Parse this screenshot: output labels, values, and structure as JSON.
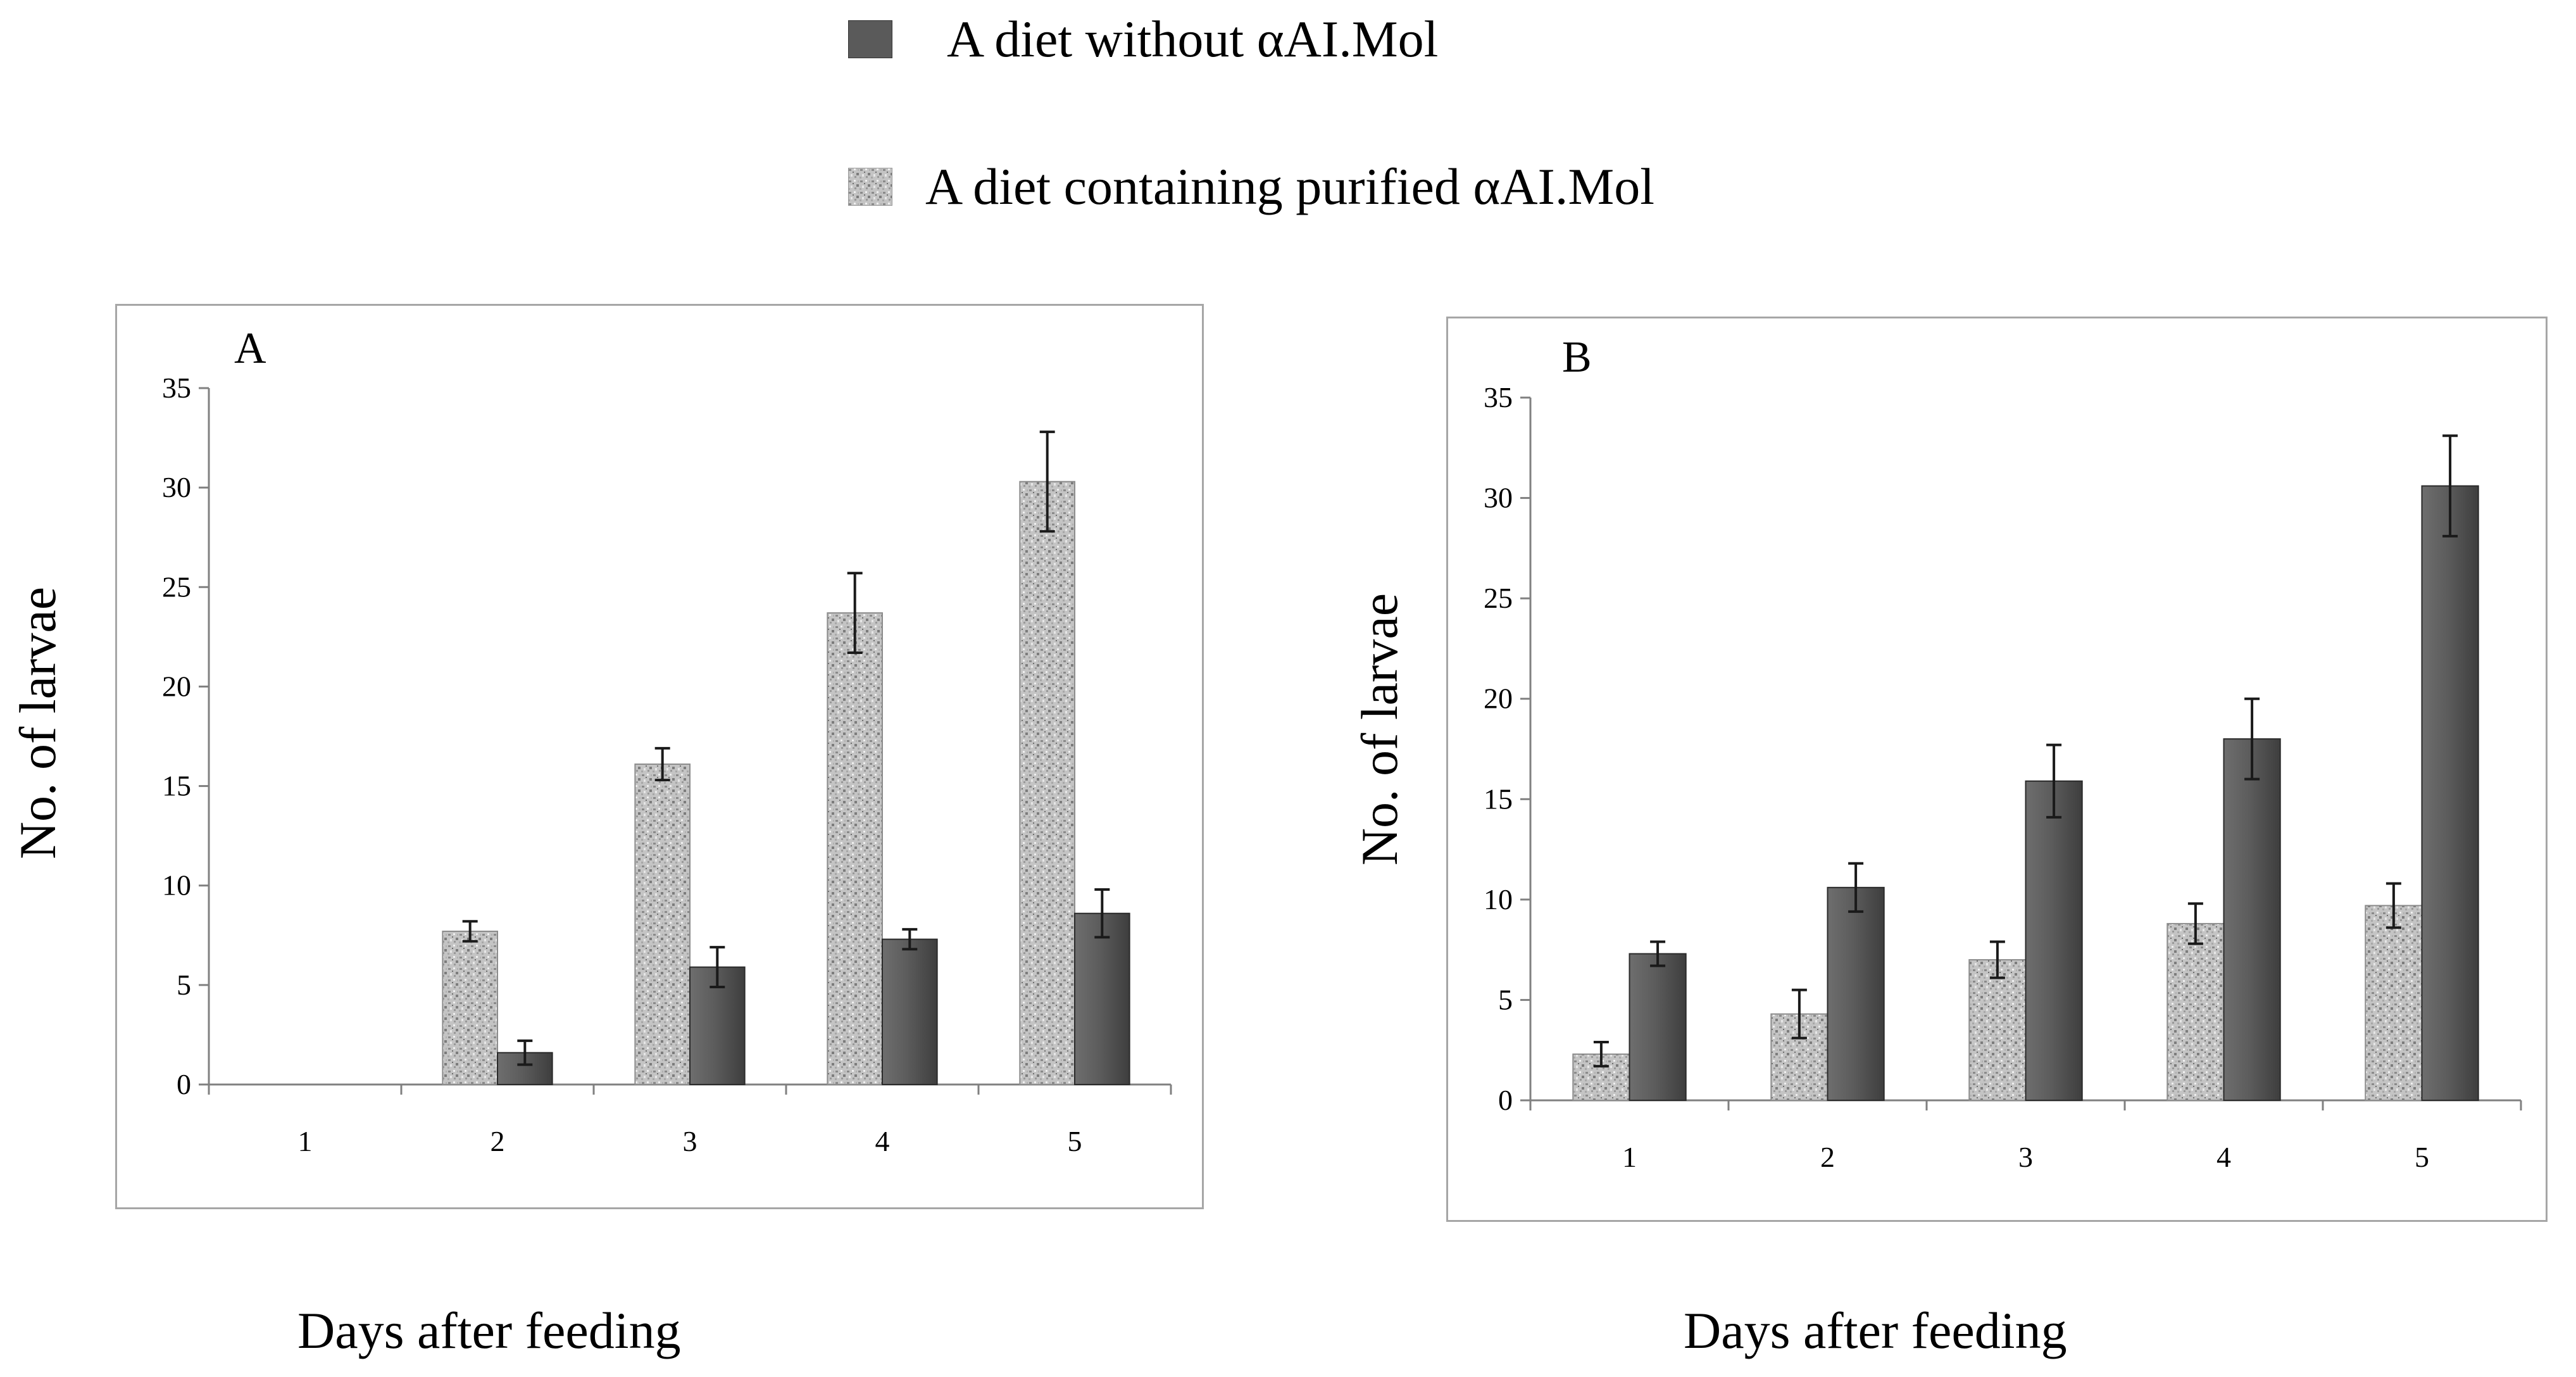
{
  "legend": {
    "items": [
      {
        "label": "A diet without αAI.Mol",
        "color": "#5a5a5a",
        "pattern": "solid-dark"
      },
      {
        "label": "A diet containing purified αAI.Mol",
        "color": "#b8b8b8",
        "pattern": "speckled-gray"
      }
    ]
  },
  "panels": [
    {
      "letter": "A",
      "ylabel": "No. of larvae",
      "xlabel": "Days after feeding"
    },
    {
      "letter": "B",
      "ylabel": "No. of larvae",
      "xlabel": "Days after feeding"
    }
  ],
  "chart_data": [
    {
      "type": "bar",
      "title": "A",
      "xlabel": "Days after feeding",
      "ylabel": "No. of larvae",
      "categories": [
        "1",
        "2",
        "3",
        "4",
        "5"
      ],
      "ylim": [
        0,
        35
      ],
      "yticks": [
        0,
        5,
        10,
        15,
        20,
        25,
        30,
        35
      ],
      "legend_position": "top",
      "series": [
        {
          "name": "A diet containing purified αAI.Mol",
          "values": [
            0,
            7.7,
            16.1,
            23.7,
            30.3
          ],
          "errors": [
            0,
            0.5,
            0.8,
            2.0,
            2.5
          ]
        },
        {
          "name": "A diet without αAI.Mol",
          "values": [
            0,
            1.6,
            5.9,
            7.3,
            8.6
          ],
          "errors": [
            0,
            0.6,
            1.0,
            0.5,
            1.2
          ]
        }
      ]
    },
    {
      "type": "bar",
      "title": "B",
      "xlabel": "Days after feeding",
      "ylabel": "No. of larvae",
      "categories": [
        "1",
        "2",
        "3",
        "4",
        "5"
      ],
      "ylim": [
        0,
        35
      ],
      "yticks": [
        0,
        5,
        10,
        15,
        20,
        25,
        30,
        35
      ],
      "legend_position": "top",
      "series": [
        {
          "name": "A diet containing purified αAI.Mol",
          "values": [
            2.3,
            4.3,
            7.0,
            8.8,
            9.7
          ],
          "errors": [
            0.6,
            1.2,
            0.9,
            1.0,
            1.1
          ]
        },
        {
          "name": "A diet without αAI.Mol",
          "values": [
            7.3,
            10.6,
            15.9,
            18.0,
            30.6
          ],
          "errors": [
            0.6,
            1.2,
            1.8,
            2.0,
            2.5
          ]
        }
      ]
    }
  ]
}
